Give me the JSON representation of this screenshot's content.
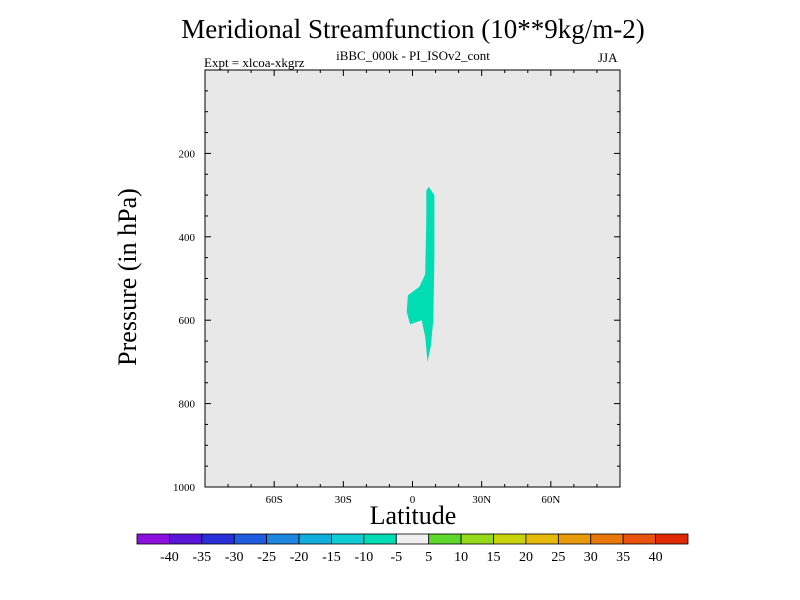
{
  "chart_data": {
    "type": "filled-contour",
    "title": "Meridional Streamfunction (10**9kg/m-2)",
    "subtitle": "iBBC_000k - PI_ISOv2_cont",
    "left_label": "Expt = xlcoa-xkgrz",
    "right_label": "JJA",
    "xlabel": "Latitude",
    "ylabel": "Pressure (in hPa)",
    "x_axis": {
      "range": [
        -90,
        90
      ],
      "ticks": [
        {
          "value": -60,
          "label": "60S"
        },
        {
          "value": -30,
          "label": "30S"
        },
        {
          "value": 0,
          "label": "0"
        },
        {
          "value": 30,
          "label": "30N"
        },
        {
          "value": 60,
          "label": "60N"
        }
      ]
    },
    "y_axis": {
      "range": [
        0,
        1000
      ],
      "inverted": true,
      "ticks": [
        200,
        400,
        600,
        800,
        1000
      ]
    },
    "colorbar": {
      "labels": [
        "-40",
        "-35",
        "-30",
        "-25",
        "-20",
        "-15",
        "-10",
        "-5",
        "5",
        "10",
        "15",
        "20",
        "25",
        "30",
        "35",
        "40"
      ],
      "colors": [
        "#8c0fe0",
        "#5a16d8",
        "#2a30d8",
        "#1f5ce0",
        "#1f86e0",
        "#10aedc",
        "#10cdd4",
        "#00dcb4",
        "#f0f0f0",
        "#5ed82a",
        "#96d81a",
        "#c8d20a",
        "#e6b80a",
        "#e89a0a",
        "#e8780a",
        "#e8520a",
        "#e02a06"
      ]
    },
    "background_color": "#e8e8e8",
    "regions": [
      {
        "level": "-10 to -5",
        "color": "#00dcb4",
        "outline": [
          [
            7.0,
            280
          ],
          [
            9.5,
            300
          ],
          [
            9.5,
            450
          ],
          [
            9.0,
            600
          ],
          [
            8.0,
            660
          ],
          [
            6.5,
            700
          ],
          [
            5.5,
            640
          ],
          [
            4.0,
            600
          ],
          [
            -1.0,
            610
          ],
          [
            -2.5,
            580
          ],
          [
            -2.0,
            540
          ],
          [
            3.0,
            520
          ],
          [
            5.5,
            490
          ],
          [
            6.0,
            360
          ],
          [
            6.0,
            290
          ]
        ]
      }
    ]
  }
}
